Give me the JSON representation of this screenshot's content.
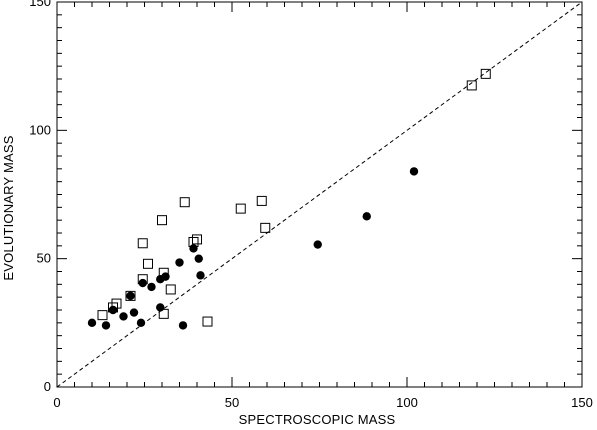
{
  "chart_data": {
    "type": "scatter",
    "title": "",
    "xlabel": "SPECTROSCOPIC MASS",
    "ylabel": "EVOLUTIONARY MASS",
    "xlim": [
      0,
      150
    ],
    "ylim": [
      0,
      150
    ],
    "x_ticks": [
      0,
      50,
      100,
      150
    ],
    "y_ticks": [
      0,
      50,
      100,
      150
    ],
    "x_tick_labels": [
      "0",
      "50",
      "100",
      "150"
    ],
    "y_tick_labels": [
      "0",
      "50",
      "100",
      "150"
    ],
    "grid": false,
    "legend": "none",
    "reference_line": {
      "style": "dashed",
      "from": [
        0,
        0
      ],
      "to": [
        150,
        150
      ]
    },
    "series": [
      {
        "marker": "filled-circle",
        "points": [
          [
            10,
            25
          ],
          [
            14,
            24
          ],
          [
            16,
            30
          ],
          [
            19,
            27.5
          ],
          [
            21,
            35.5
          ],
          [
            22,
            29
          ],
          [
            24,
            25
          ],
          [
            24.5,
            40.5
          ],
          [
            27,
            39
          ],
          [
            29.5,
            42
          ],
          [
            29.5,
            31
          ],
          [
            31,
            43
          ],
          [
            35,
            48.5
          ],
          [
            36,
            24
          ],
          [
            39,
            54
          ],
          [
            40.5,
            50
          ],
          [
            41,
            43.5
          ],
          [
            74.5,
            55.5
          ],
          [
            88.5,
            66.5
          ],
          [
            102,
            84
          ]
        ]
      },
      {
        "marker": "open-square",
        "points": [
          [
            13,
            28
          ],
          [
            16,
            31
          ],
          [
            17,
            32.5
          ],
          [
            21,
            35.5
          ],
          [
            24.5,
            42
          ],
          [
            24.5,
            56
          ],
          [
            26,
            48
          ],
          [
            30,
            65
          ],
          [
            30.5,
            44.5
          ],
          [
            30.5,
            28.5
          ],
          [
            32.5,
            38
          ],
          [
            36.5,
            72
          ],
          [
            39,
            56.5
          ],
          [
            40,
            57.5
          ],
          [
            43,
            25.5
          ],
          [
            52.5,
            69.5
          ],
          [
            58.5,
            72.5
          ],
          [
            59.5,
            62
          ],
          [
            118.5,
            117.5
          ],
          [
            122.5,
            122
          ]
        ]
      }
    ]
  },
  "colors": {
    "axis": "#000000",
    "marker": "#000000",
    "background": "#ffffff"
  }
}
